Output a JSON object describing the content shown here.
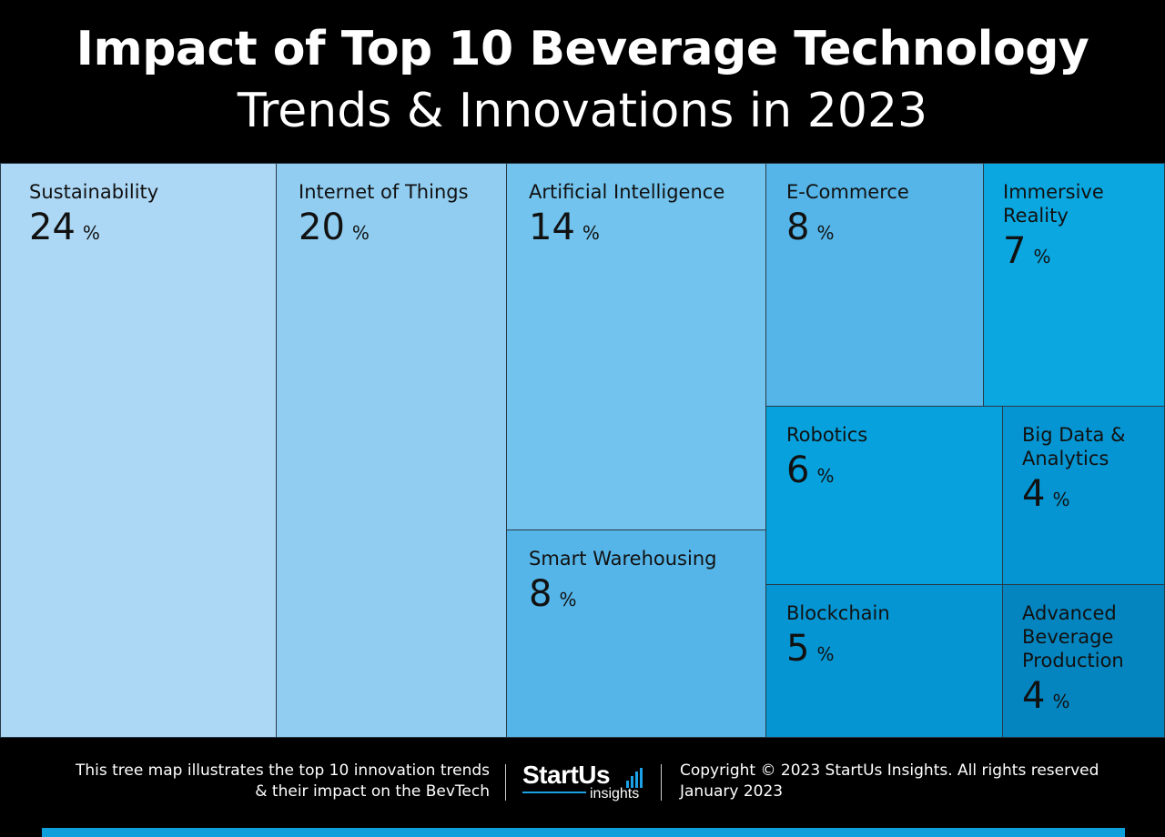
{
  "header": {
    "title": "Impact of Top 10 Beverage Technology",
    "subtitle": "Trends & Innovations in 2023"
  },
  "chart_data": {
    "type": "treemap",
    "unit": "%",
    "items": [
      {
        "label": "Sustainability",
        "value": 24,
        "color": "#add8f5"
      },
      {
        "label": "Internet of Things",
        "value": 20,
        "color": "#90cdf1"
      },
      {
        "label": "Artificial Intelligence",
        "value": 14,
        "color": "#72c3ee"
      },
      {
        "label": "Smart Warehousing",
        "value": 8,
        "color": "#55b5e8"
      },
      {
        "label": "E-Commerce",
        "value": 8,
        "color": "#55b5e8"
      },
      {
        "label": "Immersive Reality",
        "value": 7,
        "color": "#0ba7e0"
      },
      {
        "label": "Robotics",
        "value": 6,
        "color": "#07a2de"
      },
      {
        "label": "Big Data & Analytics",
        "value": 4,
        "color": "#0595d2"
      },
      {
        "label": "Blockchain",
        "value": 5,
        "color": "#0595d2"
      },
      {
        "label": "Advanced Beverage Production",
        "value": 4,
        "color": "#0485bf"
      }
    ]
  },
  "footer": {
    "description_line1": "This tree map illustrates the top 10 innovation trends",
    "description_line2": "& their impact on the BevTech",
    "logo_text": "StartUs",
    "logo_sub": "insights",
    "copyright": "Copyright © 2023 StartUs Insights. All rights reserved",
    "date": "January 2023"
  }
}
